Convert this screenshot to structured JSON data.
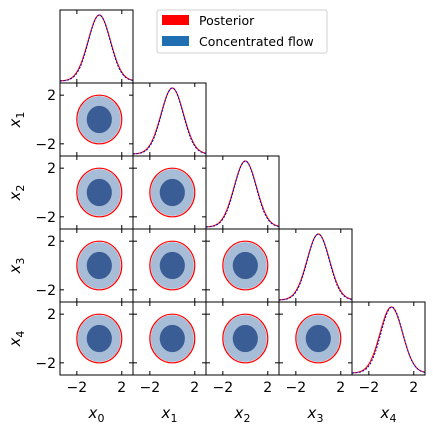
{
  "chart_data": {
    "type": "corner",
    "variables": [
      "x_0",
      "x_1",
      "x_2",
      "x_3",
      "x_4"
    ],
    "axis_labels": {
      "x": [
        {
          "base": "x",
          "sub": "0"
        },
        {
          "base": "x",
          "sub": "1"
        },
        {
          "base": "x",
          "sub": "2"
        },
        {
          "base": "x",
          "sub": "3"
        },
        {
          "base": "x",
          "sub": "4"
        }
      ],
      "y": [
        {
          "base": "x",
          "sub": "1"
        },
        {
          "base": "x",
          "sub": "2"
        },
        {
          "base": "x",
          "sub": "3"
        },
        {
          "base": "x",
          "sub": "4"
        }
      ]
    },
    "xlim": [
      -3.5,
      3.0
    ],
    "ylim": [
      -3.0,
      3.0
    ],
    "ticks": [
      -2,
      2
    ],
    "tick_labels": [
      "−2",
      "2"
    ],
    "legend": {
      "placement": "top-right",
      "entries": [
        {
          "label": "Posterior",
          "color": "#ff0000"
        },
        {
          "label": "Concentrated flow",
          "color": "#1f6fb2"
        }
      ]
    },
    "posterior": {
      "mean": 0.0,
      "std": 1.0,
      "contour_radius_outer": 2.0,
      "color": "#ff0000"
    },
    "flow": {
      "mean": 0.0,
      "std": 1.0,
      "contour_radius_outer": 1.92,
      "contour_radius_inner": 1.12,
      "color_outer": "#a7bcd6",
      "color_inner": "#3a5d95",
      "line_color": "#0000cc"
    },
    "marginal_offsets": [
      0.0,
      0.0,
      0.0,
      0.0,
      0.05
    ]
  },
  "colors": {
    "posterior": "#ff0000",
    "flow_line": "#1f6fb2",
    "flow_outer_fill": "#a7bcd6",
    "flow_inner_fill": "#3a5d95"
  }
}
